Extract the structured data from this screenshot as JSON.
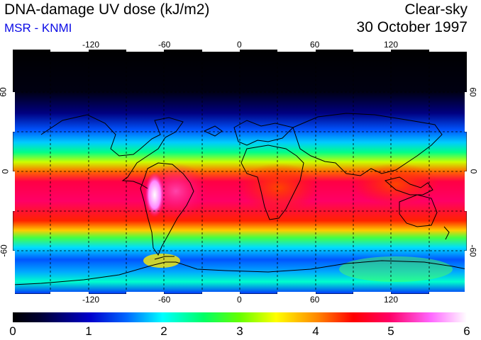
{
  "header": {
    "title": "DNA-damage UV dose (kJ/m2)",
    "credit": "MSR - KNMI",
    "condition": "Clear-sky",
    "date": "30 October 1997"
  },
  "map": {
    "projection": "equirectangular",
    "longitude_ticks": [
      "-120",
      "-60",
      "0",
      "60",
      "120"
    ],
    "latitude_ticks": [
      "60",
      "0",
      "-60"
    ],
    "latitude_ticks_right": [
      "60",
      "0",
      "-60"
    ]
  },
  "colorbar": {
    "labels": [
      "0",
      "1",
      "2",
      "3",
      "4",
      "5",
      "6"
    ],
    "colors": [
      "#000000",
      "#0000cc",
      "#00ffff",
      "#66ff00",
      "#ff8800",
      "#ff0066",
      "#ffffff"
    ]
  }
}
